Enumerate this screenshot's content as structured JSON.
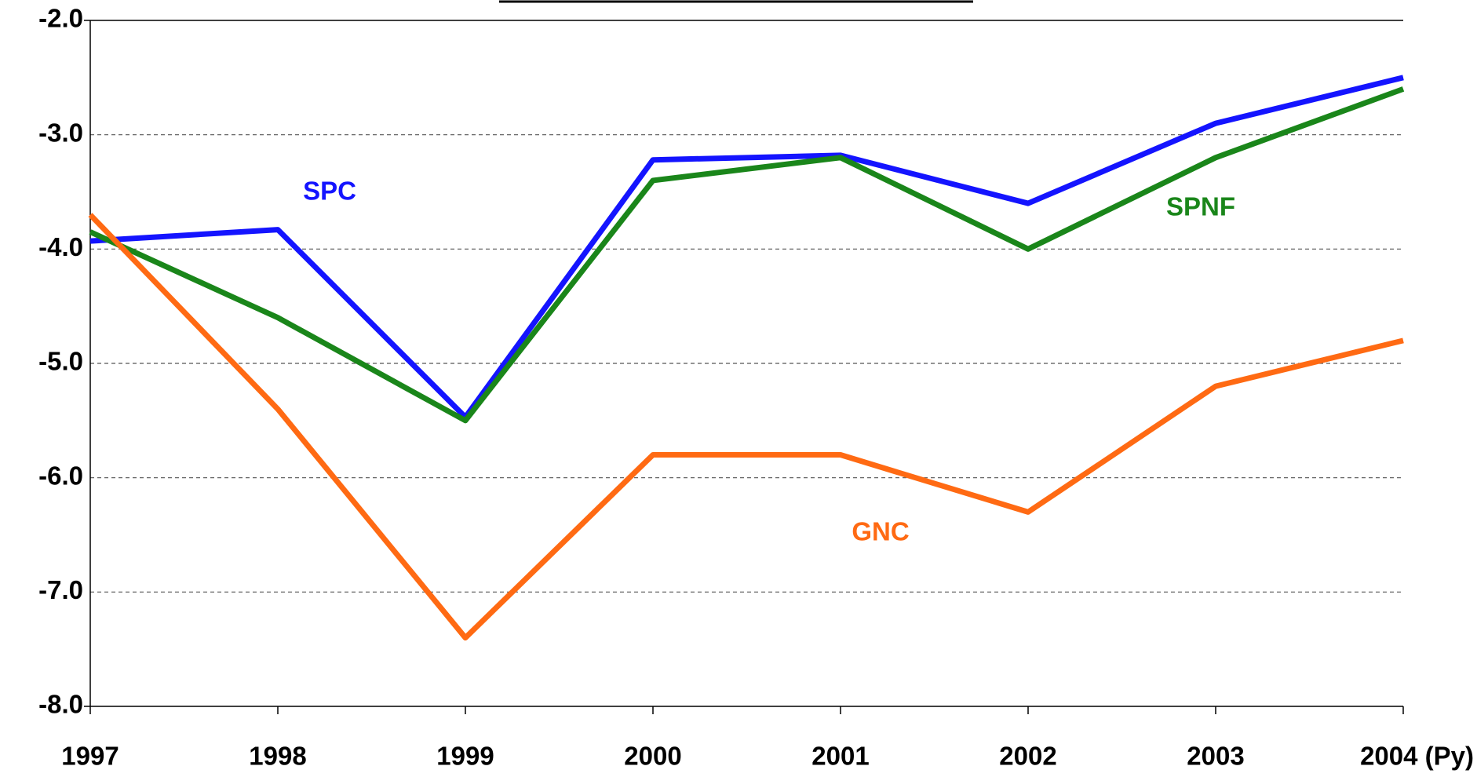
{
  "chart_data": {
    "type": "line",
    "categories": [
      "1997",
      "1998",
      "1999",
      "2000",
      "2001",
      "2002",
      "2003",
      "2004 (Py)"
    ],
    "series": [
      {
        "name": "SPC",
        "color": "#1414ff",
        "values": [
          -3.93,
          -3.83,
          -5.47,
          -3.22,
          -3.18,
          -3.6,
          -2.9,
          -2.5
        ]
      },
      {
        "name": "SPNF",
        "color": "#1a861a",
        "values": [
          -3.85,
          -4.6,
          -5.5,
          -3.4,
          -3.2,
          -4.0,
          -3.2,
          -2.6
        ]
      },
      {
        "name": "GNC",
        "color": "#ff6a13",
        "values": [
          -3.7,
          -5.4,
          -7.4,
          -5.8,
          -5.8,
          -6.3,
          -5.2,
          -4.8
        ]
      }
    ],
    "ylim": [
      -8,
      -2
    ],
    "yticks": [
      {
        "value": -8,
        "label": "-8.0"
      },
      {
        "value": -7,
        "label": "-7.0"
      },
      {
        "value": -6,
        "label": "-6.0"
      },
      {
        "value": -5,
        "label": "-5.0"
      },
      {
        "value": -4,
        "label": "-4.0"
      },
      {
        "value": -3,
        "label": "-3.0"
      },
      {
        "value": -2,
        "label": "-2.0"
      }
    ],
    "grid": true
  }
}
